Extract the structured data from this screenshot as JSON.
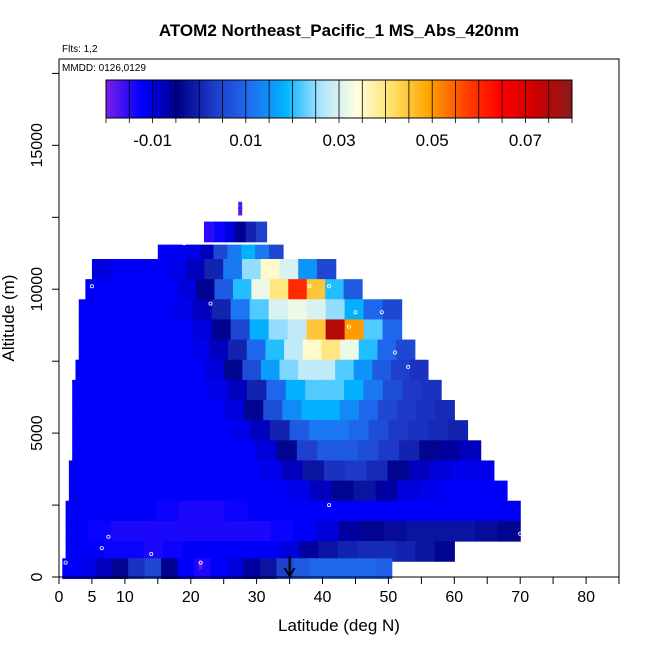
{
  "chart_data": {
    "type": "heatmap",
    "title": "ATOM2 Northeast_Pacific_1 MS_Abs_420nm",
    "flights_label": "Flts: 1,2",
    "date_label": "MMDD: 0126,0129",
    "xlabel": "Latitude (deg N)",
    "ylabel": "Altitude (m)",
    "xlim": [
      0,
      85
    ],
    "ylim": [
      0,
      18000
    ],
    "x_ticks": [
      0,
      5,
      10,
      20,
      30,
      40,
      50,
      60,
      70,
      80
    ],
    "y_ticks": [
      0,
      5000,
      10000,
      15000
    ],
    "grid": false,
    "colorbar": {
      "range": [
        -0.02,
        0.08
      ],
      "tick_values": [
        -0.01,
        0.01,
        0.03,
        0.05,
        0.07
      ],
      "tick_labels": [
        "-0.01",
        "0.01",
        "0.03",
        "0.05",
        "0.07"
      ],
      "colors": [
        "#7a1fe6",
        "#0000ff",
        "#00008b",
        "#1e3ac8",
        "#1e6cf0",
        "#00b4ff",
        "#aee4ff",
        "#ffffe0",
        "#ffe066",
        "#ffa500",
        "#ff4500",
        "#ff0000",
        "#cc0000",
        "#8b1a1a"
      ]
    },
    "marker_latitude": 35,
    "bands": [
      {
        "alt": 12000,
        "lat_min": 22,
        "lat_max": 31.5,
        "vals": [
          -0.015,
          -0.013,
          -0.01,
          -0.005,
          0.0,
          0.004
        ]
      },
      {
        "alt": 11200,
        "lat_min": 15,
        "lat_max": 34,
        "vals": [
          -0.012,
          -0.012,
          -0.011,
          -0.008,
          0.005,
          0.012,
          0.018,
          0.012,
          0.005
        ]
      },
      {
        "alt": 10700,
        "lat_min": 5,
        "lat_max": 42,
        "vals": [
          -0.01,
          -0.012,
          -0.012,
          -0.012,
          -0.011,
          -0.008,
          0.0,
          0.012,
          0.025,
          0.035,
          0.03,
          0.015,
          0.005
        ]
      },
      {
        "alt": 10000,
        "lat_min": 4,
        "lat_max": 46,
        "vals": [
          -0.012,
          -0.012,
          -0.012,
          -0.012,
          -0.012,
          -0.01,
          -0.005,
          0.008,
          0.02,
          0.032,
          0.04,
          0.06,
          0.045,
          0.02,
          0.008
        ]
      },
      {
        "alt": 9300,
        "lat_min": 3,
        "lat_max": 52,
        "vals": [
          -0.012,
          -0.012,
          -0.012,
          -0.012,
          -0.012,
          -0.011,
          -0.008,
          0.0,
          0.012,
          0.022,
          0.03,
          0.032,
          0.03,
          0.025,
          0.018,
          0.01,
          0.005
        ]
      },
      {
        "alt": 8600,
        "lat_min": 3,
        "lat_max": 52,
        "vals": [
          -0.012,
          -0.012,
          -0.012,
          -0.012,
          -0.012,
          -0.012,
          -0.01,
          -0.005,
          0.005,
          0.018,
          0.025,
          0.028,
          0.045,
          0.075,
          0.05,
          0.022,
          0.01
        ]
      },
      {
        "alt": 7900,
        "lat_min": 3,
        "lat_max": 54,
        "vals": [
          -0.012,
          -0.012,
          -0.012,
          -0.012,
          -0.012,
          -0.012,
          -0.011,
          -0.008,
          0.0,
          0.01,
          0.02,
          0.028,
          0.035,
          0.04,
          0.032,
          0.02,
          0.01,
          0.005
        ]
      },
      {
        "alt": 7200,
        "lat_min": 2.5,
        "lat_max": 56,
        "vals": [
          -0.012,
          -0.012,
          -0.012,
          -0.012,
          -0.012,
          -0.012,
          -0.012,
          -0.01,
          -0.004,
          0.006,
          0.016,
          0.024,
          0.028,
          0.028,
          0.022,
          0.015,
          0.008,
          0.004,
          0.002
        ]
      },
      {
        "alt": 6500,
        "lat_min": 2,
        "lat_max": 58,
        "vals": [
          -0.012,
          -0.012,
          -0.012,
          -0.012,
          -0.012,
          -0.012,
          -0.012,
          -0.011,
          -0.008,
          0.0,
          0.01,
          0.018,
          0.022,
          0.022,
          0.018,
          0.012,
          0.006,
          0.003,
          0.002
        ]
      },
      {
        "alt": 5800,
        "lat_min": 2,
        "lat_max": 60,
        "vals": [
          -0.012,
          -0.012,
          -0.012,
          -0.012,
          -0.012,
          -0.012,
          -0.012,
          -0.012,
          -0.01,
          -0.004,
          0.006,
          0.014,
          0.018,
          0.018,
          0.014,
          0.01,
          0.005,
          0.003,
          0.002,
          0.001
        ]
      },
      {
        "alt": 5100,
        "lat_min": 2,
        "lat_max": 62,
        "vals": [
          -0.012,
          -0.012,
          -0.012,
          -0.012,
          -0.012,
          -0.012,
          -0.012,
          -0.012,
          -0.011,
          -0.008,
          0.0,
          0.008,
          0.012,
          0.012,
          0.01,
          0.006,
          0.003,
          0.002,
          0.001,
          0.0
        ]
      },
      {
        "alt": 4400,
        "lat_min": 2,
        "lat_max": 64,
        "vals": [
          -0.012,
          -0.012,
          -0.012,
          -0.012,
          -0.012,
          -0.012,
          -0.012,
          -0.012,
          -0.012,
          -0.01,
          -0.004,
          0.004,
          0.008,
          0.008,
          0.006,
          0.003,
          0.0,
          -0.004,
          -0.006,
          -0.008
        ]
      },
      {
        "alt": 3700,
        "lat_min": 1.5,
        "lat_max": 66,
        "vals": [
          -0.012,
          -0.012,
          -0.012,
          -0.012,
          -0.012,
          -0.012,
          -0.012,
          -0.012,
          -0.012,
          -0.011,
          -0.008,
          -0.002,
          0.002,
          0.003,
          0.001,
          -0.004,
          -0.008,
          -0.01,
          -0.011,
          -0.011
        ]
      },
      {
        "alt": 3000,
        "lat_min": 1.5,
        "lat_max": 68,
        "vals": [
          -0.012,
          -0.012,
          -0.012,
          -0.012,
          -0.012,
          -0.012,
          -0.012,
          -0.012,
          -0.012,
          -0.012,
          -0.011,
          -0.008,
          -0.004,
          -0.002,
          -0.006,
          -0.01,
          -0.011,
          -0.012,
          -0.012,
          -0.012
        ]
      },
      {
        "alt": 2300,
        "lat_min": 1,
        "lat_max": 70,
        "vals": [
          -0.012,
          -0.012,
          -0.012,
          -0.012,
          -0.013,
          -0.014,
          -0.014,
          -0.013,
          -0.012,
          -0.012,
          -0.012,
          -0.012,
          -0.012,
          -0.012,
          -0.012,
          -0.012,
          -0.012,
          -0.012,
          -0.012,
          -0.012
        ]
      },
      {
        "alt": 1600,
        "lat_min": 1,
        "lat_max": 70,
        "vals": [
          -0.012,
          -0.013,
          -0.014,
          -0.014,
          -0.014,
          -0.014,
          -0.014,
          -0.014,
          -0.014,
          -0.013,
          -0.012,
          -0.01,
          -0.006,
          -0.004,
          -0.003,
          -0.002,
          -0.002,
          -0.002,
          -0.003,
          -0.004
        ]
      },
      {
        "alt": 900,
        "lat_min": 1,
        "lat_max": 60,
        "vals": [
          -0.012,
          -0.012,
          -0.013,
          -0.013,
          -0.014,
          -0.013,
          -0.012,
          -0.012,
          -0.012,
          -0.012,
          -0.012,
          -0.01,
          -0.006,
          -0.002,
          0.0,
          0.001,
          0.001,
          0.0,
          -0.002,
          -0.004
        ]
      },
      {
        "alt": 300,
        "lat_min": 0.5,
        "lat_max": 50.5,
        "vals": [
          -0.012,
          -0.011,
          -0.008,
          -0.004,
          0.002,
          0.005,
          -0.005,
          -0.012,
          -0.014,
          -0.012,
          -0.01,
          -0.006,
          -0.002,
          0.004,
          0.008,
          0.01,
          0.01,
          0.01,
          0.01,
          0.009
        ]
      }
    ],
    "band_thickness": 700,
    "highlight_points": [
      {
        "lat": 27.5,
        "alt": 12900,
        "val": -0.018
      },
      {
        "lat": 27.5,
        "alt": 12700,
        "val": -0.018
      },
      {
        "lat": 21.5,
        "alt": 400,
        "val": -0.018
      }
    ],
    "sample_points": [
      {
        "lat": 12,
        "alt": 11700
      },
      {
        "lat": 19,
        "alt": 11600
      },
      {
        "lat": 2,
        "alt": 11100
      },
      {
        "lat": 2.5,
        "alt": 10700
      },
      {
        "lat": 5,
        "alt": 10100
      },
      {
        "lat": 23,
        "alt": 9500
      },
      {
        "lat": 41,
        "alt": 10100
      },
      {
        "lat": 38,
        "alt": 10100
      },
      {
        "lat": 45,
        "alt": 9200
      },
      {
        "lat": 49,
        "alt": 9200
      },
      {
        "lat": 44,
        "alt": 8700
      },
      {
        "lat": 51,
        "alt": 7800
      },
      {
        "lat": 53,
        "alt": 7300
      },
      {
        "lat": 41,
        "alt": 2500
      },
      {
        "lat": 70,
        "alt": 1500
      },
      {
        "lat": 7.5,
        "alt": 1400
      },
      {
        "lat": 6.5,
        "alt": 1000
      },
      {
        "lat": 14,
        "alt": 800
      },
      {
        "lat": 21.5,
        "alt": 500
      },
      {
        "lat": 1,
        "alt": 500
      }
    ],
    "colorbar_anchor_ticks": [
      {
        "value": -0.02
      },
      {
        "value": -0.015
      },
      {
        "value": -0.01
      },
      {
        "value": -0.005
      },
      {
        "value": 0.0
      },
      {
        "value": 0.005
      },
      {
        "value": 0.01
      },
      {
        "value": 0.015
      },
      {
        "value": 0.02
      },
      {
        "value": 0.025
      },
      {
        "value": 0.03
      },
      {
        "value": 0.035
      },
      {
        "value": 0.04
      },
      {
        "value": 0.045
      },
      {
        "value": 0.05
      },
      {
        "value": 0.055
      },
      {
        "value": 0.06
      },
      {
        "value": 0.065
      },
      {
        "value": 0.07
      },
      {
        "value": 0.075
      },
      {
        "value": 0.08
      }
    ]
  }
}
